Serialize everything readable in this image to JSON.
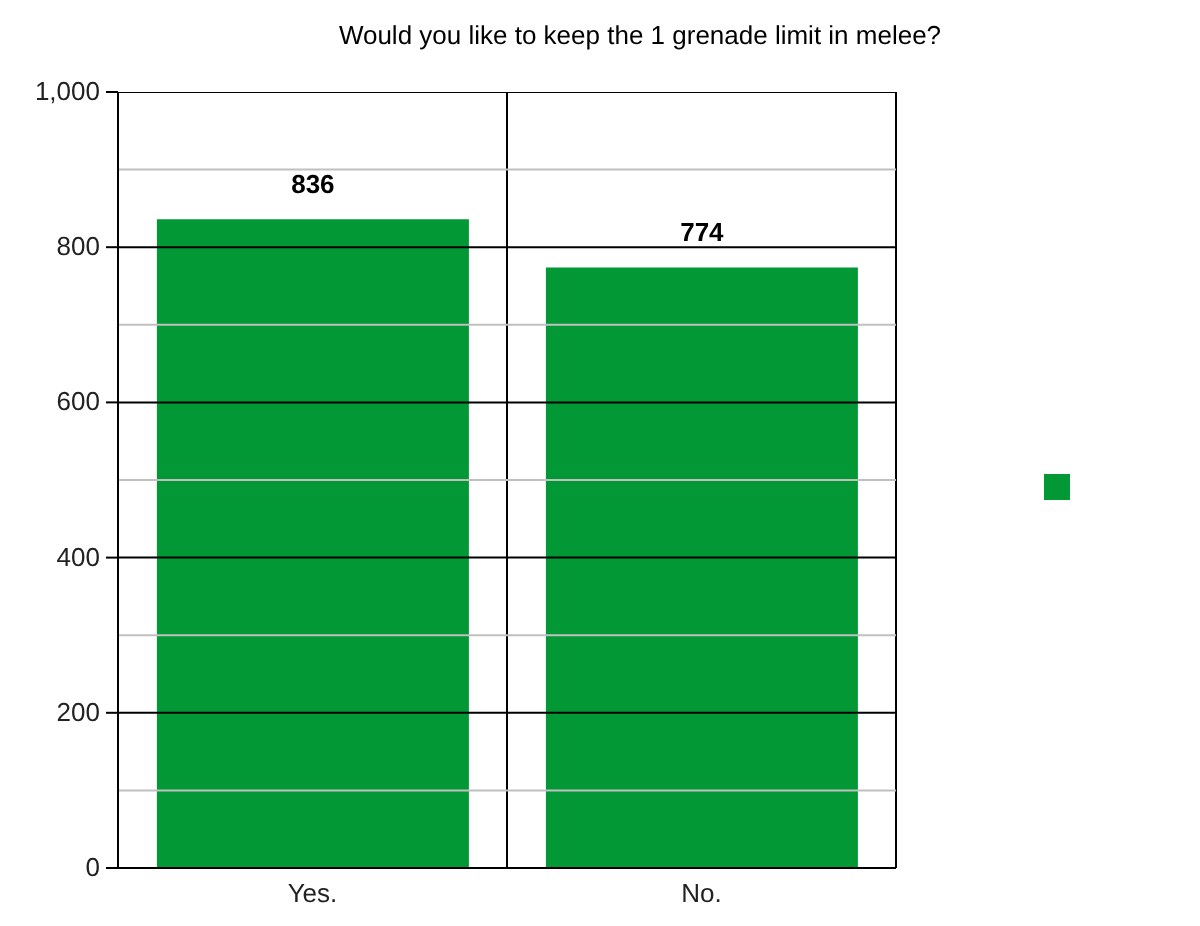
{
  "chart_data": {
    "type": "bar",
    "title": "Would you like to keep the 1 grenade limit in melee?",
    "categories": [
      "Yes.",
      "No."
    ],
    "series": [
      {
        "color": "#039836",
        "values": [
          836,
          774
        ]
      }
    ],
    "data_labels": true,
    "ylim": [
      0,
      1000
    ],
    "yticks": [
      0,
      {
        "value": 100,
        "label": null
      },
      200,
      {
        "value": 300,
        "label": null
      },
      400,
      {
        "value": 500,
        "label": null
      },
      600,
      {
        "value": 700,
        "label": null
      },
      800,
      {
        "value": 900,
        "label": null
      },
      {
        "value": 1000,
        "label": "1,000"
      }
    ],
    "grid": true
  }
}
